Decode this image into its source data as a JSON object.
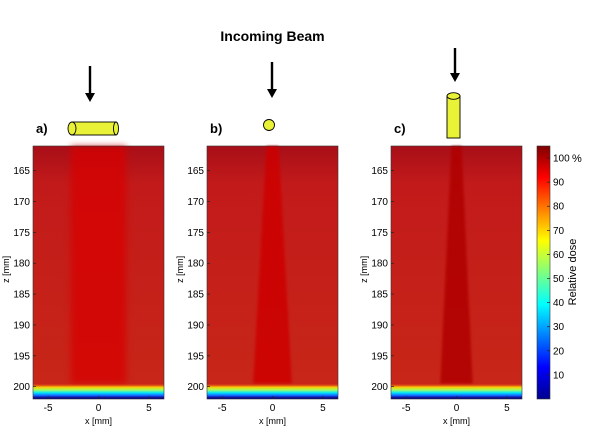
{
  "figure": {
    "title": "Incoming Beam"
  },
  "chart_data": [
    {
      "type": "heatmap",
      "panel_label": "a)",
      "beam_orientation": "horizontal cylinder (side-on)",
      "xlabel": "x  [mm]",
      "ylabel": "z  [mm]",
      "x_ticks": [
        "-5",
        "0",
        "5"
      ],
      "x_tick_values": [
        -5,
        0,
        5
      ],
      "z_ticks": [
        "165",
        "170",
        "175",
        "180",
        "185",
        "190",
        "195",
        "200"
      ],
      "z_tick_values": [
        165,
        170,
        175,
        180,
        185,
        190,
        195,
        200
      ],
      "xlim": [
        -6.5,
        6.5
      ],
      "zlim": [
        161,
        202
      ],
      "axis_box_edges_z": [
        161.5,
        201.8
      ],
      "background_dose_pct": 88,
      "beam_core": {
        "width_mm": 5.5,
        "peak_dose_pct": 96
      },
      "edge_band_z_mm": [
        199.5,
        201.8
      ]
    },
    {
      "type": "heatmap",
      "panel_label": "b)",
      "beam_orientation": "circular cross-section (end-on)",
      "xlabel": "x  [mm]",
      "ylabel": "z  [mm]",
      "x_ticks": [
        "-5",
        "0",
        "5"
      ],
      "x_tick_values": [
        -5,
        0,
        5
      ],
      "z_ticks": [
        "165",
        "170",
        "175",
        "180",
        "185",
        "190",
        "195",
        "200"
      ],
      "z_tick_values": [
        165,
        170,
        175,
        180,
        185,
        190,
        195,
        200
      ],
      "xlim": [
        -6.5,
        6.5
      ],
      "zlim": [
        161,
        202
      ],
      "background_dose_pct": 87,
      "beam_core": {
        "width_mm": 1.2,
        "peak_dose_pct": 97
      },
      "edge_band_z_mm": [
        199.5,
        201.8
      ]
    },
    {
      "type": "heatmap",
      "panel_label": "c)",
      "beam_orientation": "vertical cylinder (along beam)",
      "xlabel": "x  [mm]",
      "ylabel": "z  [mm]",
      "x_ticks": [
        "-5",
        "0",
        "5"
      ],
      "x_tick_values": [
        -5,
        0,
        5
      ],
      "z_ticks": [
        "165",
        "170",
        "175",
        "180",
        "185",
        "190",
        "195",
        "200"
      ],
      "z_tick_values": [
        165,
        170,
        175,
        180,
        185,
        190,
        195,
        200
      ],
      "xlim": [
        -6.5,
        6.5
      ],
      "zlim": [
        161,
        202
      ],
      "background_dose_pct": 87,
      "beam_core": {
        "width_mm": 1.0,
        "peak_dose_pct": 100
      },
      "edge_band_z_mm": [
        199.5,
        201.8
      ]
    }
  ],
  "colorbar": {
    "label": "Relative dose",
    "unit": "%",
    "ticks": [
      "10",
      "20",
      "30",
      "40",
      "50",
      "60",
      "70",
      "80",
      "90",
      "100"
    ],
    "tick_values": [
      10,
      20,
      30,
      40,
      50,
      60,
      70,
      80,
      90,
      100
    ],
    "range": [
      0,
      105
    ],
    "colormap": "jet"
  },
  "colors": {
    "beam_marker_fill": "#eaf237",
    "beam_marker_stroke": "#000000",
    "arrow": "#000000"
  }
}
